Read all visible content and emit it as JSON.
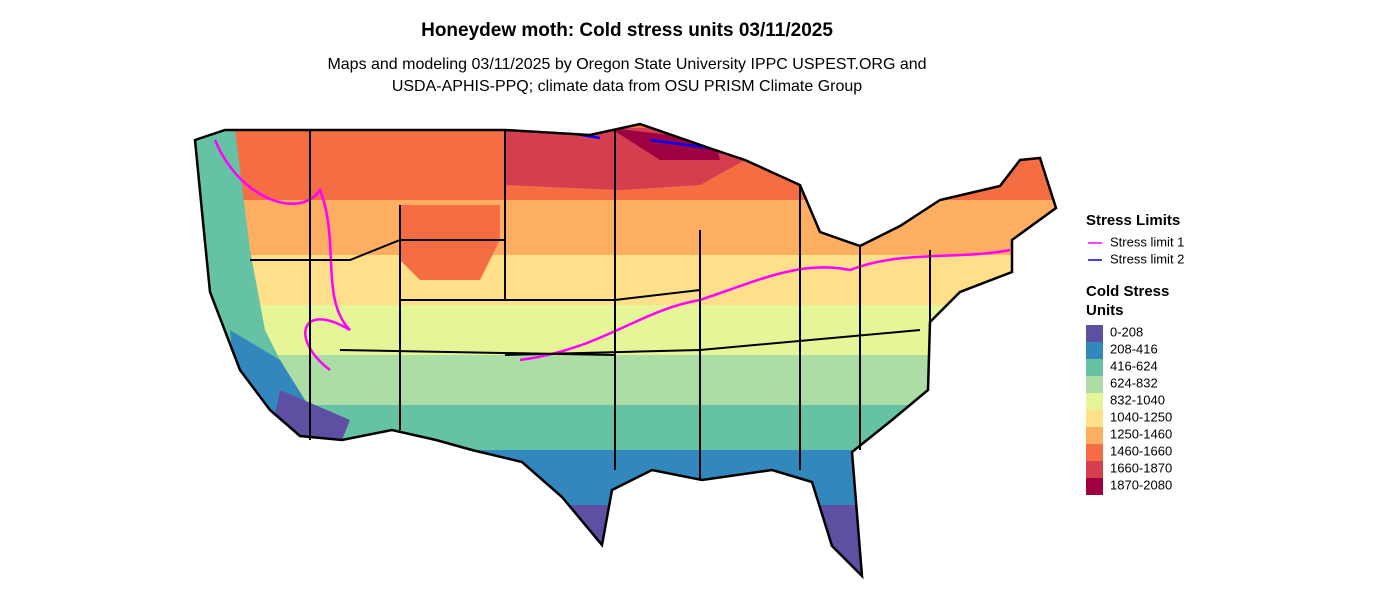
{
  "header": {
    "title": "Honeydew moth: Cold stress units 03/11/2025",
    "subtitle_lines": [
      "Maps and modeling 03/11/2025 by Oregon State University IPPC USPEST.ORG and",
      "USDA-APHIS-PPQ; climate data from OSU PRISM Climate Group"
    ]
  },
  "stress_legend": {
    "title": "Stress Limits",
    "items": [
      {
        "label": "Stress limit 1",
        "color": "#ff00ff"
      },
      {
        "label": "Stress limit 2",
        "color": "#0000ff"
      }
    ]
  },
  "units_legend": {
    "title_lines": [
      "Cold Stress",
      "Units"
    ],
    "items": [
      {
        "label": "0-208",
        "color": "#5e4fa2"
      },
      {
        "label": "208-416",
        "color": "#3288bd"
      },
      {
        "label": "416-624",
        "color": "#66c2a5"
      },
      {
        "label": "624-832",
        "color": "#abdda4"
      },
      {
        "label": "832-1040",
        "color": "#e6f598"
      },
      {
        "label": "1040-1250",
        "color": "#fee08b"
      },
      {
        "label": "1250-1460",
        "color": "#fdae61"
      },
      {
        "label": "1460-1660",
        "color": "#f46d43"
      },
      {
        "label": "1660-1870",
        "color": "#d53e4f"
      },
      {
        "label": "1870-2080",
        "color": "#9e0142"
      }
    ]
  }
}
